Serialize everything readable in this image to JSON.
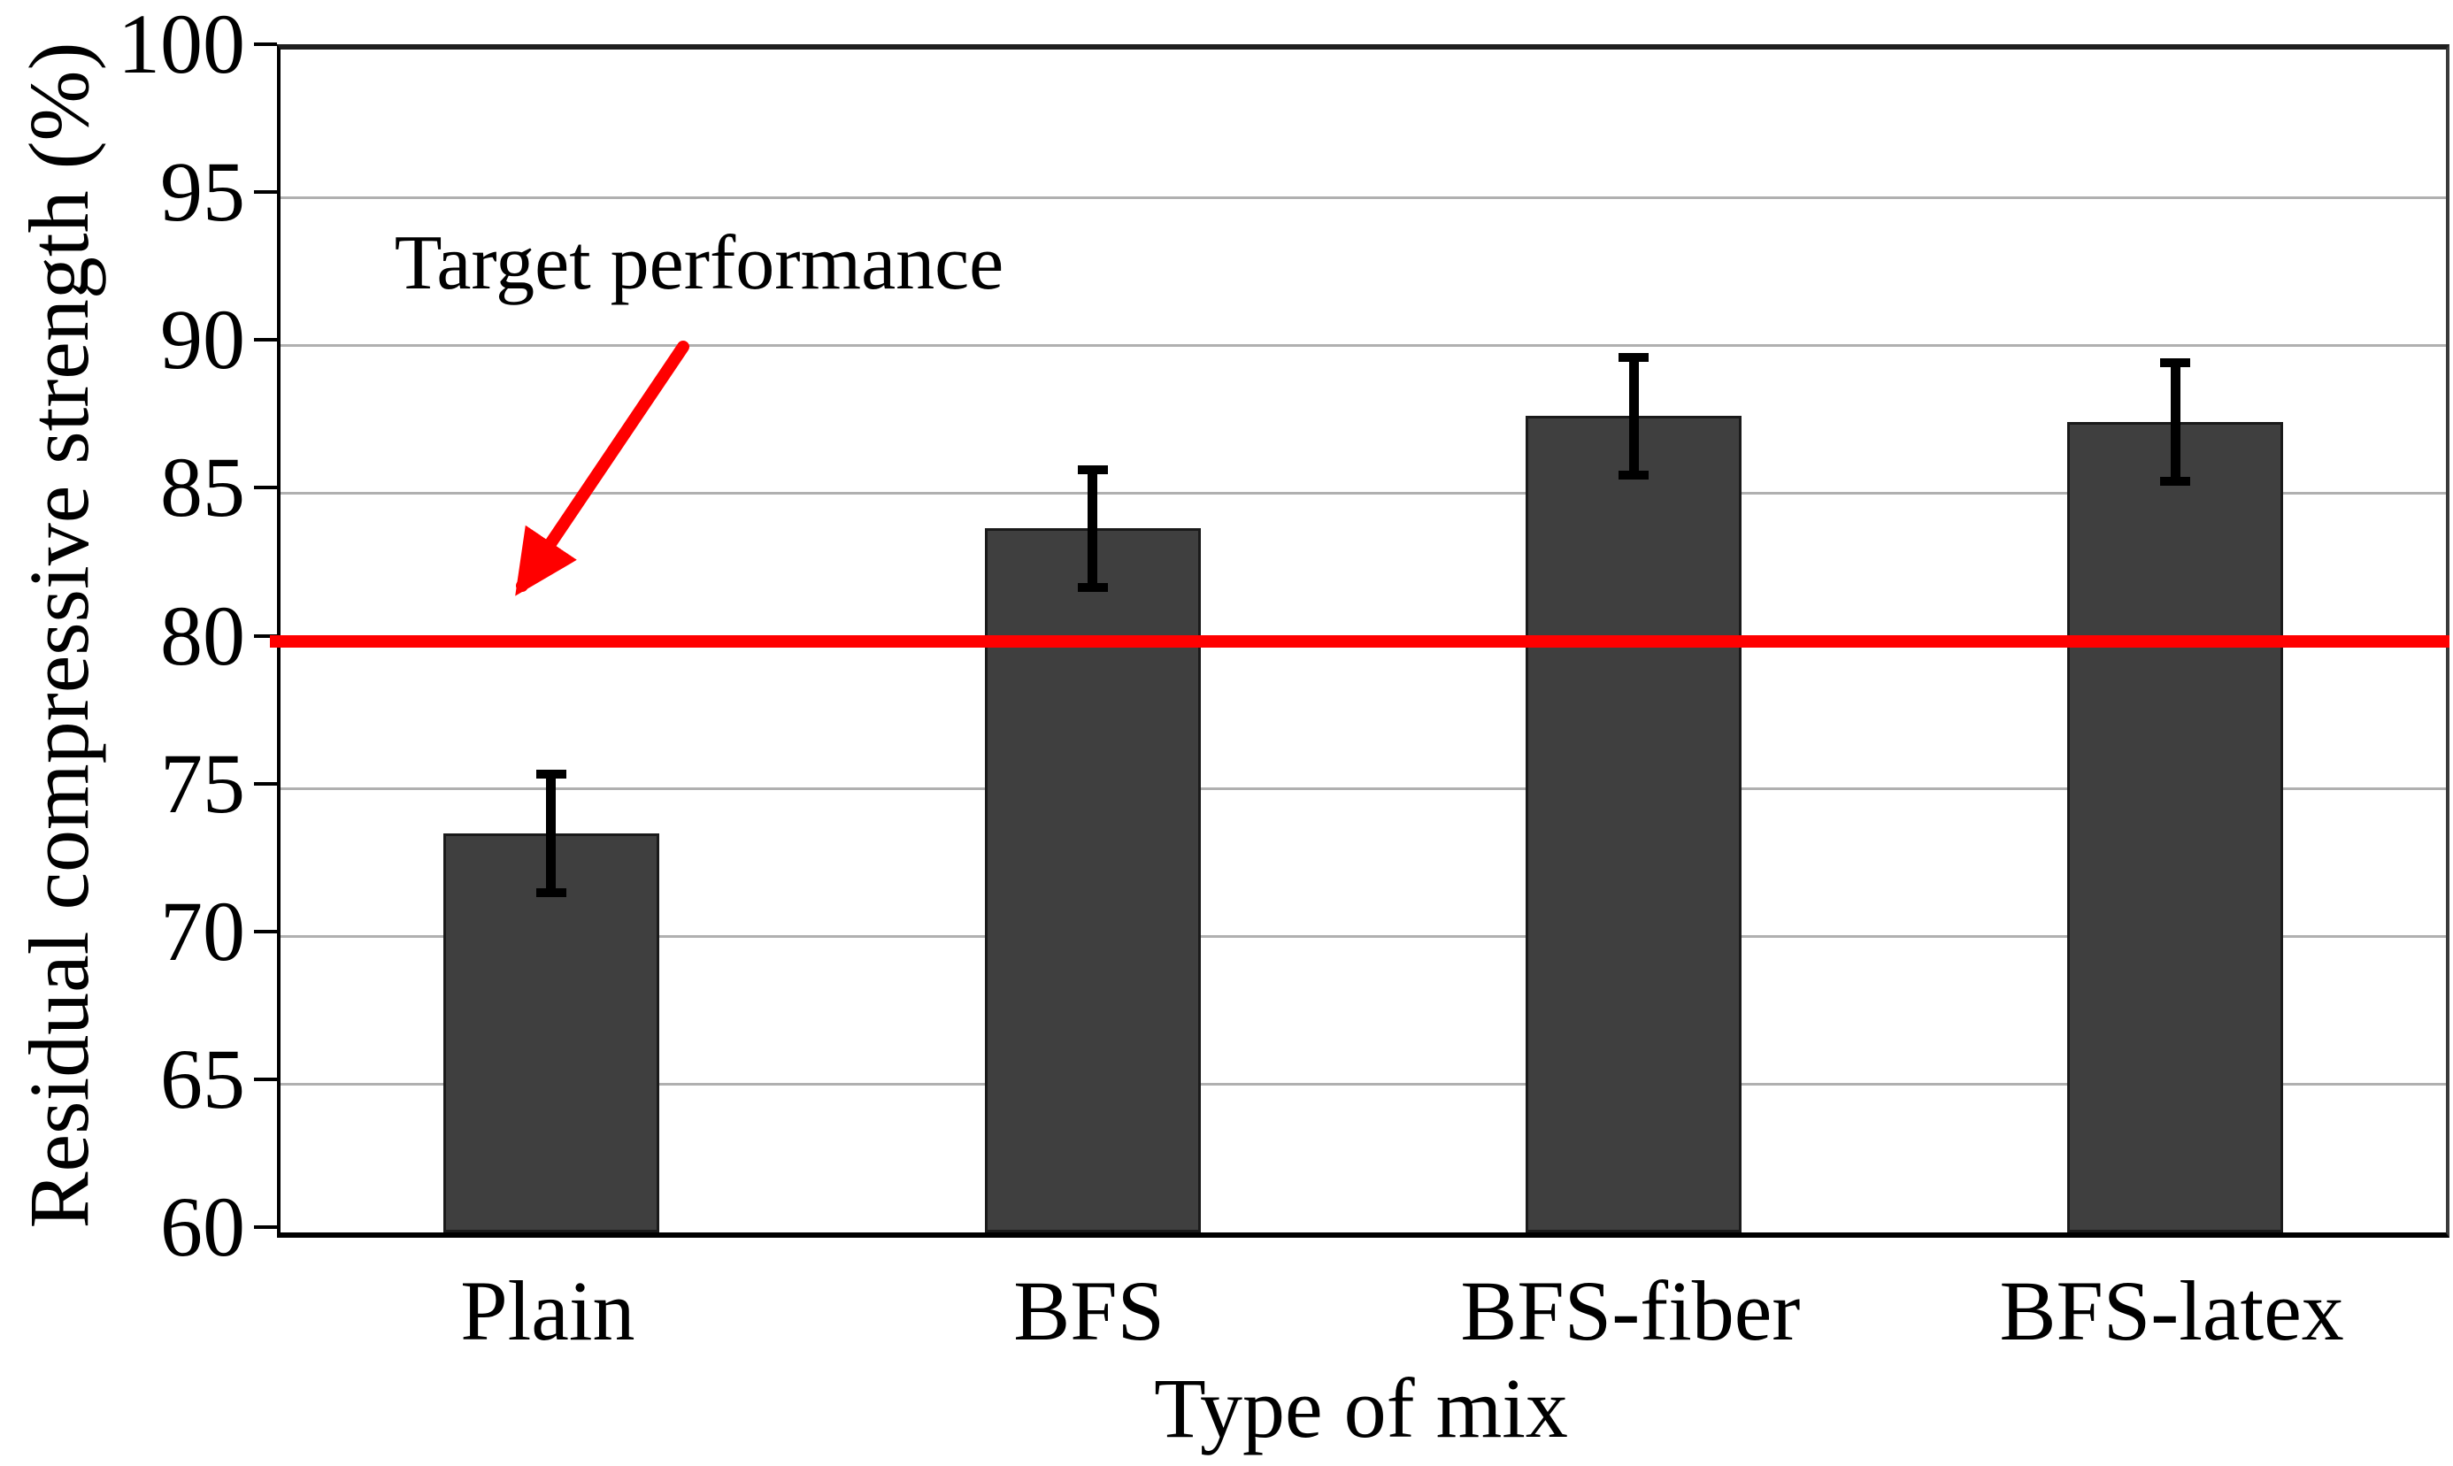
{
  "chart_data": {
    "type": "bar",
    "title": "",
    "xlabel": "Type of mix",
    "ylabel": "Residual compressive strength (%)",
    "categories": [
      "Plain",
      "BFS",
      "BFS-fiber",
      "BFS-latex"
    ],
    "values": [
      73.5,
      83.8,
      87.6,
      87.4
    ],
    "error_low": [
      71.5,
      81.8,
      85.6,
      85.4
    ],
    "error_high": [
      75.5,
      85.8,
      89.6,
      89.4
    ],
    "ylim": [
      60,
      100
    ],
    "yticks": [
      60,
      65,
      70,
      75,
      80,
      85,
      90,
      95,
      100
    ],
    "grid": "horizontal-only",
    "legend": "none",
    "reference_line": {
      "value": 80,
      "label": "Target performance",
      "color": "#ff0000"
    },
    "colors": {
      "bar_fill": "#3f3f3f",
      "bar_border": "#1a1a1a",
      "gridline": "#b0b0b0",
      "error_bar": "#000000",
      "reference": "#ff0000",
      "background": "#ffffff"
    }
  }
}
